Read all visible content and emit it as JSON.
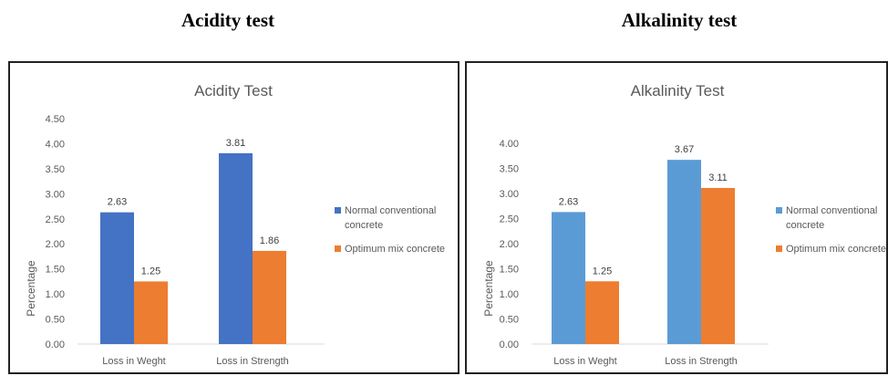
{
  "page": {
    "left_heading": "Acidity test",
    "right_heading": "Alkalinity test"
  },
  "chart_data": [
    {
      "type": "bar",
      "title": "Acidity Test",
      "ylabel": "Percentage",
      "xlabel": "",
      "categories": [
        "Loss in Weght",
        "Loss in Strength"
      ],
      "ylim": [
        0,
        4.5
      ],
      "yticks": [
        "0.00",
        "0.50",
        "1.00",
        "1.50",
        "2.00",
        "2.50",
        "3.00",
        "3.50",
        "4.00",
        "4.50"
      ],
      "series": [
        {
          "name": "Normal conventional concrete",
          "values": [
            2.63,
            3.81
          ],
          "labels": [
            "2.63",
            "3.81"
          ],
          "color": "#4472C4"
        },
        {
          "name": "Optimum mix concrete",
          "values": [
            1.25,
            1.86
          ],
          "labels": [
            "1.25",
            "1.86"
          ],
          "color": "#ED7D31"
        }
      ],
      "legend_lines": [
        [
          "Normal conventional",
          "concrete"
        ],
        [
          "Optimum mix concrete"
        ]
      ],
      "grid": false,
      "legend_position": "right"
    },
    {
      "type": "bar",
      "title": "Alkalinity Test",
      "ylabel": "Percentage",
      "xlabel": "",
      "categories": [
        "Loss in Weght",
        "Loss in Strength"
      ],
      "ylim": [
        0,
        4.0
      ],
      "yticks": [
        "0.00",
        "0.50",
        "1.00",
        "1.50",
        "2.00",
        "2.50",
        "3.00",
        "3.50",
        "4.00"
      ],
      "series": [
        {
          "name": "Normal conventional concrete",
          "values": [
            2.63,
            3.67
          ],
          "labels": [
            "2.63",
            "3.67"
          ],
          "color": "#5B9BD5"
        },
        {
          "name": "Optimum mix concrete",
          "values": [
            1.25,
            3.11
          ],
          "labels": [
            "1.25",
            "3.11"
          ],
          "color": "#ED7D31"
        }
      ],
      "legend_lines": [
        [
          "Normal conventional",
          "concrete"
        ],
        [
          "Optimum mix concrete"
        ]
      ],
      "grid": false,
      "legend_position": "right"
    }
  ]
}
